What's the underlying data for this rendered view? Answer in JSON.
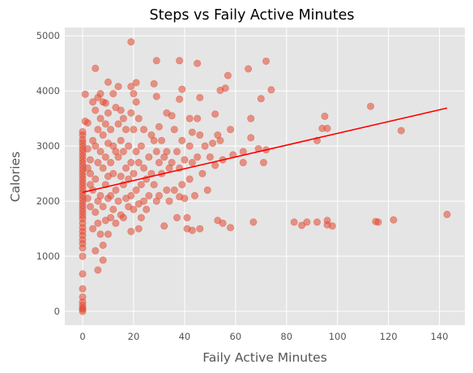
{
  "chart_data": {
    "type": "scatter",
    "title": "Steps vs Faily Active Minutes",
    "xlabel": "Faily Active Minutes",
    "ylabel": "Calories",
    "xlim": [
      -7,
      150
    ],
    "ylim": [
      -250,
      5150
    ],
    "xticks": [
      0,
      20,
      40,
      60,
      80,
      100,
      120,
      140
    ],
    "yticks": [
      0,
      1000,
      2000,
      3000,
      4000,
      5000
    ],
    "grid": true,
    "background": "#e5e5e5",
    "grid_color": "#ffffff",
    "point_color": "#e24a33",
    "point_alpha": 0.55,
    "line_color": "#ff0000",
    "trendline": {
      "x": [
        0,
        143
      ],
      "y": [
        2160,
        3690
      ]
    },
    "points": [
      [
        0,
        0
      ],
      [
        0,
        40
      ],
      [
        0,
        60
      ],
      [
        0,
        110
      ],
      [
        0,
        170
      ],
      [
        0,
        260
      ],
      [
        0,
        410
      ],
      [
        0,
        680
      ],
      [
        0,
        1000
      ],
      [
        0,
        1150
      ],
      [
        0,
        1230
      ],
      [
        0,
        1300
      ],
      [
        0,
        1380
      ],
      [
        0,
        1450
      ],
      [
        0,
        1520
      ],
      [
        0,
        1600
      ],
      [
        0,
        1680
      ],
      [
        0,
        1740
      ],
      [
        0,
        1800
      ],
      [
        0,
        1860
      ],
      [
        0,
        1920
      ],
      [
        0,
        1980
      ],
      [
        0,
        2040
      ],
      [
        0,
        2100
      ],
      [
        0,
        2160
      ],
      [
        0,
        2220
      ],
      [
        0,
        2280
      ],
      [
        0,
        2340
      ],
      [
        0,
        2400
      ],
      [
        0,
        2460
      ],
      [
        0,
        2520
      ],
      [
        0,
        2580
      ],
      [
        0,
        2640
      ],
      [
        0,
        2700
      ],
      [
        0,
        2760
      ],
      [
        0,
        2820
      ],
      [
        0,
        2880
      ],
      [
        0,
        2940
      ],
      [
        0,
        3000
      ],
      [
        0,
        3060
      ],
      [
        0,
        3120
      ],
      [
        0,
        3200
      ],
      [
        0,
        3260
      ],
      [
        1,
        3940
      ],
      [
        1,
        3450
      ],
      [
        2,
        3420
      ],
      [
        2,
        2950
      ],
      [
        2,
        2600
      ],
      [
        2,
        2050
      ],
      [
        3,
        2500
      ],
      [
        3,
        2300
      ],
      [
        3,
        1900
      ],
      [
        3,
        2750
      ],
      [
        4,
        3800
      ],
      [
        4,
        3100
      ],
      [
        4,
        2200
      ],
      [
        4,
        1500
      ],
      [
        5,
        4410
      ],
      [
        5,
        3650
      ],
      [
        5,
        3000
      ],
      [
        5,
        2400
      ],
      [
        5,
        1800
      ],
      [
        5,
        1100
      ],
      [
        6,
        3880
      ],
      [
        6,
        3300
      ],
      [
        6,
        2700
      ],
      [
        6,
        2000
      ],
      [
        6,
        1600
      ],
      [
        6,
        750
      ],
      [
        7,
        3950
      ],
      [
        7,
        3500
      ],
      [
        7,
        2900
      ],
      [
        7,
        2100
      ],
      [
        7,
        1400
      ],
      [
        8,
        3800
      ],
      [
        8,
        3200
      ],
      [
        8,
        2600
      ],
      [
        8,
        1900
      ],
      [
        8,
        1200
      ],
      [
        8,
        930
      ],
      [
        9,
        3780
      ],
      [
        9,
        3400
      ],
      [
        9,
        2800
      ],
      [
        9,
        2300
      ],
      [
        9,
        1650
      ],
      [
        10,
        4160
      ],
      [
        10,
        3600
      ],
      [
        10,
        3050
      ],
      [
        10,
        2450
      ],
      [
        10,
        2050
      ],
      [
        10,
        1400
      ],
      [
        11,
        3300
      ],
      [
        11,
        2700
      ],
      [
        11,
        2100
      ],
      [
        11,
        1700
      ],
      [
        12,
        3950
      ],
      [
        12,
        3000
      ],
      [
        12,
        2500
      ],
      [
        12,
        1850
      ],
      [
        13,
        3700
      ],
      [
        13,
        2900
      ],
      [
        13,
        2200
      ],
      [
        13,
        1600
      ],
      [
        14,
        4080
      ],
      [
        14,
        3400
      ],
      [
        14,
        2800
      ],
      [
        14,
        2000
      ],
      [
        15,
        3650
      ],
      [
        15,
        3100
      ],
      [
        15,
        2450
      ],
      [
        15,
        1750
      ],
      [
        16,
        3500
      ],
      [
        16,
        2900
      ],
      [
        16,
        2300
      ],
      [
        16,
        1700
      ],
      [
        17,
        3300
      ],
      [
        17,
        2600
      ],
      [
        17,
        2050
      ],
      [
        18,
        3000
      ],
      [
        18,
        2400
      ],
      [
        18,
        1900
      ],
      [
        19,
        4890
      ],
      [
        19,
        4080
      ],
      [
        19,
        3600
      ],
      [
        19,
        2700
      ],
      [
        19,
        2100
      ],
      [
        19,
        1450
      ],
      [
        20,
        3950
      ],
      [
        20,
        3300
      ],
      [
        20,
        2500
      ],
      [
        20,
        1850
      ],
      [
        21,
        4150
      ],
      [
        21,
        3800
      ],
      [
        21,
        2900
      ],
      [
        21,
        2200
      ],
      [
        22,
        3500
      ],
      [
        22,
        2700
      ],
      [
        22,
        1950
      ],
      [
        22,
        1500
      ],
      [
        23,
        3000
      ],
      [
        23,
        2300
      ],
      [
        23,
        1700
      ],
      [
        24,
        3300
      ],
      [
        24,
        2600
      ],
      [
        24,
        2000
      ],
      [
        25,
        2400
      ],
      [
        25,
        1850
      ],
      [
        26,
        2800
      ],
      [
        26,
        2100
      ],
      [
        27,
        3200
      ],
      [
        27,
        2500
      ],
      [
        28,
        4130
      ],
      [
        28,
        3100
      ],
      [
        28,
        2300
      ],
      [
        29,
        4550
      ],
      [
        29,
        3900
      ],
      [
        29,
        2900
      ],
      [
        29,
        2000
      ],
      [
        30,
        3350
      ],
      [
        30,
        2700
      ],
      [
        30,
        2100
      ],
      [
        31,
        3100
      ],
      [
        31,
        2500
      ],
      [
        32,
        2800
      ],
      [
        32,
        1550
      ],
      [
        33,
        3600
      ],
      [
        33,
        2900
      ],
      [
        33,
        2200
      ],
      [
        34,
        2600
      ],
      [
        34,
        2000
      ],
      [
        35,
        3550
      ],
      [
        35,
        2700
      ],
      [
        36,
        3300
      ],
      [
        36,
        2200
      ],
      [
        37,
        2900
      ],
      [
        37,
        1700
      ],
      [
        38,
        4550
      ],
      [
        38,
        3850
      ],
      [
        38,
        2600
      ],
      [
        38,
        2080
      ],
      [
        39,
        4030
      ],
      [
        39,
        3100
      ],
      [
        39,
        2300
      ],
      [
        40,
        2750
      ],
      [
        40,
        2050
      ],
      [
        41,
        1700
      ],
      [
        41,
        1500
      ],
      [
        42,
        3500
      ],
      [
        42,
        3000
      ],
      [
        42,
        2400
      ],
      [
        43,
        3250
      ],
      [
        43,
        2700
      ],
      [
        43,
        1470
      ],
      [
        44,
        2100
      ],
      [
        45,
        4500
      ],
      [
        45,
        3500
      ],
      [
        45,
        2800
      ],
      [
        46,
        3880
      ],
      [
        46,
        3200
      ],
      [
        46,
        1500
      ],
      [
        47,
        2500
      ],
      [
        48,
        3000
      ],
      [
        49,
        2200
      ],
      [
        50,
        2800
      ],
      [
        51,
        3050
      ],
      [
        52,
        3580
      ],
      [
        52,
        2650
      ],
      [
        53,
        3200
      ],
      [
        53,
        1650
      ],
      [
        54,
        4010
      ],
      [
        54,
        3100
      ],
      [
        55,
        2750
      ],
      [
        55,
        1600
      ],
      [
        56,
        4050
      ],
      [
        57,
        4280
      ],
      [
        58,
        3300
      ],
      [
        58,
        1520
      ],
      [
        59,
        2840
      ],
      [
        63,
        2700
      ],
      [
        63,
        2900
      ],
      [
        65,
        4400
      ],
      [
        66,
        3500
      ],
      [
        66,
        3150
      ],
      [
        67,
        1620
      ],
      [
        69,
        2950
      ],
      [
        70,
        3860
      ],
      [
        71,
        2700
      ],
      [
        72,
        2930
      ],
      [
        72,
        4540
      ],
      [
        74,
        4020
      ],
      [
        83,
        1620
      ],
      [
        86,
        1560
      ],
      [
        88,
        1620
      ],
      [
        92,
        3100
      ],
      [
        92,
        1620
      ],
      [
        94,
        3320
      ],
      [
        95,
        3540
      ],
      [
        96,
        1570
      ],
      [
        96,
        1650
      ],
      [
        96,
        3320
      ],
      [
        98,
        1550
      ],
      [
        113,
        3720
      ],
      [
        115,
        1630
      ],
      [
        116,
        1620
      ],
      [
        122,
        1660
      ],
      [
        125,
        3280
      ],
      [
        143,
        1760
      ]
    ]
  }
}
